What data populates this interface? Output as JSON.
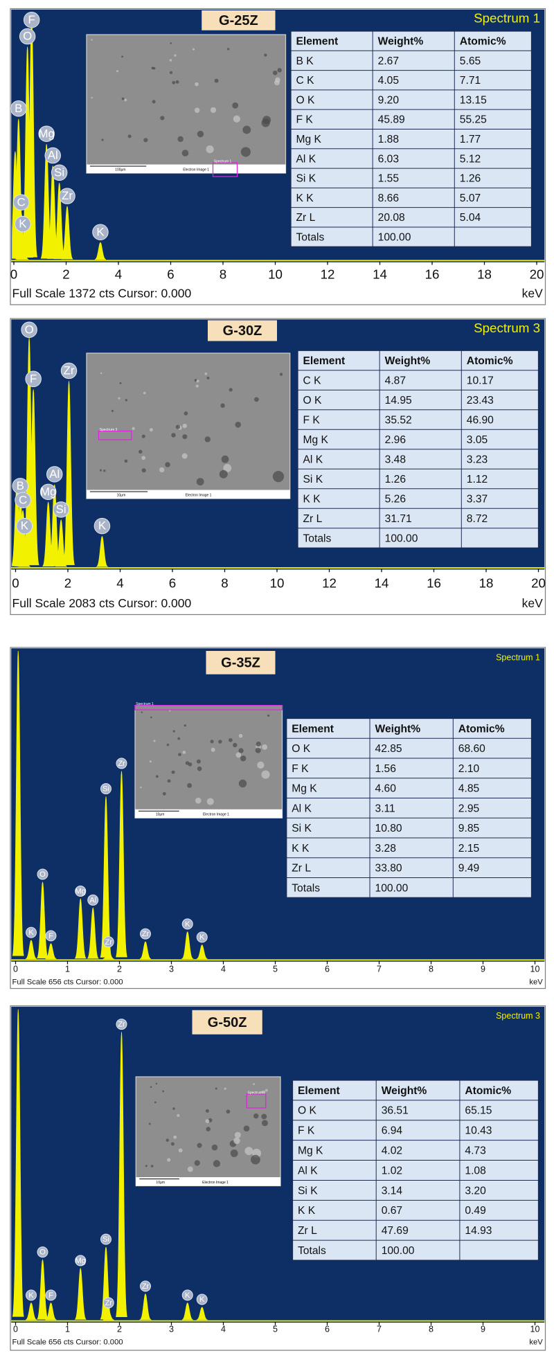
{
  "chart_data": [
    {
      "type": "spectrum",
      "title": "G-25Z",
      "spectrum_label": "Spectrum 1",
      "footer": "Full Scale 1372 cts Cursor: 0.000",
      "x_label": "keV",
      "xlim": [
        0,
        20
      ],
      "xticks": [
        0,
        2,
        4,
        6,
        8,
        10,
        12,
        14,
        16,
        18,
        20
      ],
      "ylim": [
        0,
        1372
      ],
      "color": "#f2f200",
      "peaks": {
        "labels": [
          null,
          "B",
          "C",
          "K",
          "O",
          "F",
          "Mg",
          "Al",
          "Si",
          "Zr",
          "K"
        ],
        "x": [
          0.05,
          0.18,
          0.28,
          0.34,
          0.52,
          0.68,
          1.25,
          1.49,
          1.74,
          2.04,
          3.31
        ],
        "values": [
          600,
          780,
          260,
          140,
          1180,
          1350,
          640,
          520,
          425,
          295,
          95
        ]
      },
      "image": {
        "caption": "Electron Image 1",
        "scale_bar": "100µm"
      },
      "table": {
        "header": [
          "Element",
          "Weight%",
          "Atomic%"
        ],
        "rows": [
          [
            "B K",
            "2.67",
            "5.65"
          ],
          [
            "C K",
            "4.05",
            "7.71"
          ],
          [
            "O K",
            "9.20",
            "13.15"
          ],
          [
            "F K",
            "45.89",
            "55.25"
          ],
          [
            "Mg K",
            "1.88",
            "1.77"
          ],
          [
            "Al K",
            "6.03",
            "5.12"
          ],
          [
            "Si K",
            "1.55",
            "1.26"
          ],
          [
            "K K",
            "8.66",
            "5.07"
          ],
          [
            "Zr L",
            "20.08",
            "5.04"
          ],
          [
            "Totals",
            "100.00"
          ]
        ]
      }
    },
    {
      "type": "spectrum",
      "title": "G-30Z",
      "spectrum_label": "Spectrum 3",
      "footer": "Full Scale 2083 cts Cursor: 0.000",
      "x_label": "keV",
      "xlim": [
        0,
        20
      ],
      "xticks": [
        0,
        2,
        4,
        6,
        8,
        10,
        12,
        14,
        16,
        18,
        20
      ],
      "ylim": [
        0,
        2083
      ],
      "color": "#f2f200",
      "peaks": {
        "labels": [
          null,
          "B",
          "C",
          "K",
          "O",
          "F",
          "Mg",
          "Al",
          "Si",
          "Zr",
          "K"
        ],
        "x": [
          0.05,
          0.18,
          0.28,
          0.34,
          0.52,
          0.68,
          1.25,
          1.49,
          1.74,
          2.04,
          3.31
        ],
        "values": [
          700,
          600,
          480,
          260,
          1950,
          1510,
          550,
          700,
          400,
          1580,
          260
        ]
      },
      "image": {
        "caption": "Electron Image 1",
        "scale_bar": "10µm"
      },
      "table": {
        "header": [
          "Element",
          "Weight%",
          "Atomic%"
        ],
        "rows": [
          [
            "C K",
            "4.87",
            "10.17"
          ],
          [
            "O K",
            "14.95",
            "23.43"
          ],
          [
            "F K",
            "35.52",
            "46.90"
          ],
          [
            "Mg K",
            "2.96",
            "3.05"
          ],
          [
            "Al K",
            "3.48",
            "3.23"
          ],
          [
            "Si K",
            "1.26",
            "1.12"
          ],
          [
            "K K",
            "5.26",
            "3.37"
          ],
          [
            "Zr L",
            "31.71",
            "8.72"
          ],
          [
            "Totals",
            "100.00"
          ]
        ]
      }
    },
    {
      "type": "spectrum",
      "title": "G-35Z",
      "spectrum_label": "Spectrum 1",
      "footer": "Full Scale 656 cts Cursor: 0.000",
      "x_label": "keV",
      "xlim": [
        0,
        10
      ],
      "xticks": [
        0,
        1,
        2,
        3,
        4,
        5,
        6,
        7,
        8,
        9,
        10
      ],
      "ylim": [
        0,
        656
      ],
      "color": "#f2f200",
      "peaks": {
        "labels": [
          null,
          "K",
          "O",
          "F",
          "Mg",
          "Al",
          "Si",
          "Zr",
          "Zr",
          "Zr",
          "K",
          "K"
        ],
        "x": [
          0.05,
          0.3,
          0.52,
          0.68,
          1.25,
          1.49,
          1.74,
          1.79,
          2.04,
          2.5,
          3.31,
          3.59
        ],
        "values": [
          656,
          40,
          164,
          33,
          128,
          109,
          346,
          20,
          400,
          37,
          58,
          30
        ]
      },
      "image": {
        "caption": "Electron Image 1",
        "scale_bar": "10µm"
      },
      "table": {
        "header": [
          "Element",
          "Weight%",
          "Atomic%"
        ],
        "rows": [
          [
            "O K",
            "42.85",
            "68.60"
          ],
          [
            "F K",
            "1.56",
            "2.10"
          ],
          [
            "Mg K",
            "4.60",
            "4.85"
          ],
          [
            "Al K",
            "3.11",
            "2.95"
          ],
          [
            "Si K",
            "10.80",
            "9.85"
          ],
          [
            "K K",
            "3.28",
            "2.15"
          ],
          [
            "Zr L",
            "33.80",
            "9.49"
          ],
          [
            "Totals",
            "100.00"
          ]
        ]
      }
    },
    {
      "type": "spectrum",
      "title": "G-50Z",
      "spectrum_label": "Spectrum 3",
      "footer": "Full Scale 656 cts Cursor: 0.000",
      "x_label": "keV",
      "xlim": [
        0,
        10
      ],
      "xticks": [
        0,
        1,
        2,
        3,
        4,
        5,
        6,
        7,
        8,
        9,
        10
      ],
      "ylim": [
        0,
        656
      ],
      "color": "#f2f200",
      "peaks": {
        "labels": [
          null,
          "K",
          "O",
          "F",
          "Mg",
          "Si",
          "Zr",
          "Zr",
          "Zr",
          "K",
          "K"
        ],
        "x": [
          0.05,
          0.3,
          0.52,
          0.68,
          1.25,
          1.74,
          1.79,
          2.04,
          2.5,
          3.31,
          3.59
        ],
        "values": [
          656,
          36,
          127,
          36,
          109,
          154,
          20,
          608,
          55,
          36,
          27
        ]
      },
      "image": {
        "caption": "Electron Image 1",
        "scale_bar": "10µm"
      },
      "table": {
        "header": [
          "Element",
          "Weight%",
          "Atomic%"
        ],
        "rows": [
          [
            "O K",
            "36.51",
            "65.15"
          ],
          [
            "F K",
            "6.94",
            "10.43"
          ],
          [
            "Mg K",
            "4.02",
            "4.73"
          ],
          [
            "Al K",
            "1.02",
            "1.08"
          ],
          [
            "Si K",
            "3.14",
            "3.20"
          ],
          [
            "K K",
            "0.67",
            "0.49"
          ],
          [
            "Zr L",
            "47.69",
            "14.93"
          ],
          [
            "Totals",
            "100.00"
          ]
        ]
      }
    }
  ]
}
